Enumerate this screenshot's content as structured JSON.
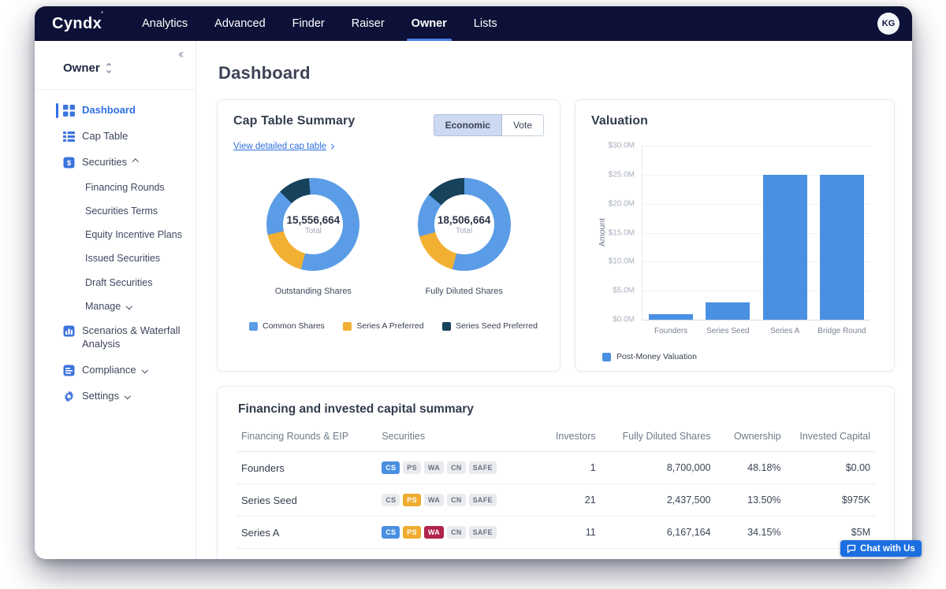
{
  "topbar": {
    "logo": "Cyndx",
    "nav": [
      {
        "label": "Analytics",
        "active": false
      },
      {
        "label": "Advanced",
        "active": false
      },
      {
        "label": "Finder",
        "active": false
      },
      {
        "label": "Raiser",
        "active": false
      },
      {
        "label": "Owner",
        "active": true
      },
      {
        "label": "Lists",
        "active": false
      }
    ],
    "avatar_initials": "KG"
  },
  "sidebar": {
    "workspace_label": "Owner",
    "items": [
      {
        "label": "Dashboard",
        "icon": "dashboard",
        "active": true
      },
      {
        "label": "Cap Table",
        "icon": "cap-table"
      },
      {
        "label": "Securities",
        "icon": "securities",
        "caret": "up"
      },
      {
        "label": "Financing Rounds",
        "sub": true
      },
      {
        "label": "Securities Terms",
        "sub": true
      },
      {
        "label": "Equity Incentive Plans",
        "sub": true
      },
      {
        "label": "Issued Securities",
        "sub": true
      },
      {
        "label": "Draft Securities",
        "sub": true
      },
      {
        "label": "Manage",
        "sub": true,
        "caret": "down"
      },
      {
        "label": "Scenarios & Waterfall Analysis",
        "icon": "scenarios"
      },
      {
        "label": "Compliance",
        "icon": "compliance",
        "caret": "down"
      },
      {
        "label": "Settings",
        "icon": "settings",
        "caret": "down"
      }
    ]
  },
  "page_title": "Dashboard",
  "cap_table_card": {
    "title": "Cap Table Summary",
    "link_label": "View detailed cap table",
    "toggle": {
      "options": [
        "Economic",
        "Vote"
      ],
      "selected": "Economic"
    },
    "donuts": [
      {
        "value": "15,556,664",
        "caption": "Total",
        "label": "Outstanding Shares",
        "start_deg": 315,
        "segments": [
          {
            "name": "Series Seed Preferred",
            "color": "#16425c",
            "deg": 40
          },
          {
            "name": "Common Shares",
            "color": "#5b9ce6",
            "deg": 200
          },
          {
            "name": "Series A Preferred",
            "color": "#f2b033",
            "deg": 62
          },
          {
            "name": "Common Shares",
            "color": "#5b9ce6",
            "deg": 58
          }
        ]
      },
      {
        "value": "18,506,664",
        "caption": "Total",
        "label": "Fully Diluted Shares",
        "start_deg": 310,
        "segments": [
          {
            "name": "Series Seed Preferred",
            "color": "#16425c",
            "deg": 50
          },
          {
            "name": "Common Shares",
            "color": "#5b9ce6",
            "deg": 195
          },
          {
            "name": "Series A Preferred",
            "color": "#f2b033",
            "deg": 60
          },
          {
            "name": "Common Shares",
            "color": "#5b9ce6",
            "deg": 55
          }
        ]
      }
    ],
    "legend": [
      {
        "label": "Common Shares",
        "color": "#5b9ce6"
      },
      {
        "label": "Series A Preferred",
        "color": "#f2b033"
      },
      {
        "label": "Series Seed Preferred",
        "color": "#16425c"
      }
    ]
  },
  "valuation_card": {
    "title": "Valuation",
    "chart": {
      "type": "bar",
      "ylabel": "Amount",
      "categories": [
        "Founders",
        "Series Seed",
        "Series A",
        "Bridge Round"
      ],
      "values_musd": [
        0.9,
        3,
        25,
        25
      ],
      "ymax_musd": 30,
      "yticks": [
        "$0.0M",
        "$5.0M",
        "$10.0M",
        "$15.0M",
        "$20.0M",
        "$25.0M",
        "$30.0M"
      ],
      "bar_color": "#4a90e2",
      "legend_label": "Post-Money Valuation"
    }
  },
  "financing_table": {
    "title": "Financing and invested capital summary",
    "columns": [
      "Financing Rounds & EIP",
      "Securities",
      "Investors",
      "Fully Diluted Shares",
      "Ownership",
      "Invested Capital"
    ],
    "badge_colors": {
      "CS": "#4a8fe2",
      "PS": "#efac30",
      "WA": "#b2234c",
      "default_bg": "#e9ebef",
      "default_text": "#6a7280"
    },
    "rows": [
      {
        "name": "Founders",
        "securities": [
          {
            "code": "CS",
            "active": true
          },
          {
            "code": "PS",
            "active": false
          },
          {
            "code": "WA",
            "active": false
          },
          {
            "code": "CN",
            "active": false
          },
          {
            "code": "SAFE",
            "active": false
          }
        ],
        "investors": "1",
        "fully_diluted_shares": "8,700,000",
        "ownership": "48.18%",
        "invested_capital": "$0.00"
      },
      {
        "name": "Series Seed",
        "securities": [
          {
            "code": "CS",
            "active": false
          },
          {
            "code": "PS",
            "active": true
          },
          {
            "code": "WA",
            "active": false
          },
          {
            "code": "CN",
            "active": false
          },
          {
            "code": "SAFE",
            "active": false
          }
        ],
        "investors": "21",
        "fully_diluted_shares": "2,437,500",
        "ownership": "13.50%",
        "invested_capital": "$975K"
      },
      {
        "name": "Series A",
        "securities": [
          {
            "code": "CS",
            "active": true
          },
          {
            "code": "PS",
            "active": true
          },
          {
            "code": "WA",
            "active": true
          },
          {
            "code": "CN",
            "active": false
          },
          {
            "code": "SAFE",
            "active": false
          }
        ],
        "investors": "11",
        "fully_diluted_shares": "6,167,164",
        "ownership": "34.15%",
        "invested_capital": "$5M"
      }
    ]
  },
  "chat_button_label": "Chat with Us"
}
